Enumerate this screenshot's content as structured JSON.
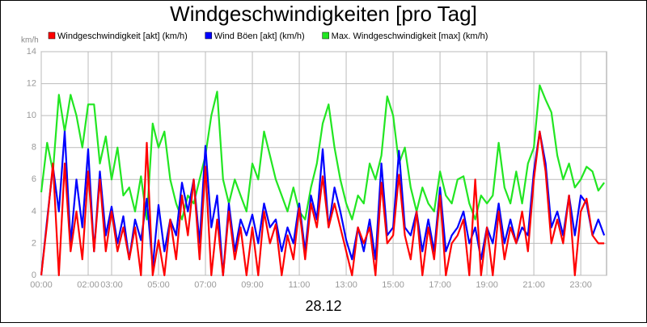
{
  "chart_data": {
    "type": "line",
    "title": "Windgeschwindigkeiten [pro Tag]",
    "y_unit": "km/h",
    "x_label": "28.12",
    "grid": true,
    "xlim": [
      0,
      24.1
    ],
    "ylim": [
      0,
      14
    ],
    "yticks": [
      0,
      2,
      4,
      6,
      8,
      10,
      12,
      14
    ],
    "xticks": [
      {
        "value": 0,
        "label": "00:00"
      },
      {
        "value": 2,
        "label": "02:00"
      },
      {
        "value": 3,
        "label": "03:00"
      },
      {
        "value": 5,
        "label": "05:00"
      },
      {
        "value": 7,
        "label": "07:00"
      },
      {
        "value": 9,
        "label": "09:00"
      },
      {
        "value": 11,
        "label": "11:00"
      },
      {
        "value": 13,
        "label": "13:00"
      },
      {
        "value": 15,
        "label": "15:00"
      },
      {
        "value": 17,
        "label": "17:00"
      },
      {
        "value": 19,
        "label": "19:00"
      },
      {
        "value": 21,
        "label": "21:00"
      },
      {
        "value": 23,
        "label": "23:00"
      }
    ],
    "x": [
      0,
      0.25,
      0.5,
      0.75,
      1,
      1.25,
      1.5,
      1.75,
      2,
      2.25,
      2.5,
      2.75,
      3,
      3.25,
      3.5,
      3.75,
      4,
      4.25,
      4.5,
      4.75,
      5,
      5.25,
      5.5,
      5.75,
      6,
      6.25,
      6.5,
      6.75,
      7,
      7.25,
      7.5,
      7.75,
      8,
      8.25,
      8.5,
      8.75,
      9,
      9.25,
      9.5,
      9.75,
      10,
      10.25,
      10.5,
      10.75,
      11,
      11.25,
      11.5,
      11.75,
      12,
      12.25,
      12.5,
      12.75,
      13,
      13.25,
      13.5,
      13.75,
      14,
      14.25,
      14.5,
      14.75,
      15,
      15.25,
      15.5,
      15.75,
      16,
      16.25,
      16.5,
      16.75,
      17,
      17.25,
      17.5,
      17.75,
      18,
      18.25,
      18.5,
      18.75,
      19,
      19.25,
      19.5,
      19.75,
      20,
      20.25,
      20.5,
      20.75,
      21,
      21.25,
      21.5,
      21.75,
      22,
      22.25,
      22.5,
      22.75,
      23,
      23.25,
      23.5,
      23.75,
      24
    ],
    "series": [
      {
        "name": "Windgeschwindigkeit [akt] (km/h)",
        "color": "#ff0000",
        "values": [
          0,
          3.3,
          7,
          0,
          7,
          1.5,
          4,
          1,
          6.5,
          1.5,
          6,
          1.5,
          4,
          1.5,
          3,
          1,
          3,
          0,
          8.3,
          0,
          2.2,
          0,
          3.5,
          1,
          5,
          2.5,
          6,
          1,
          6.8,
          0,
          3.5,
          0,
          4,
          1,
          3,
          0,
          3,
          0,
          4,
          2,
          3.2,
          0,
          2.5,
          1,
          4.2,
          1,
          4.5,
          3,
          6.2,
          3,
          4.5,
          3,
          1.5,
          0,
          3,
          2,
          3,
          0,
          5.8,
          2,
          2.5,
          6.3,
          2.5,
          1,
          4,
          0,
          3,
          1,
          5,
          0,
          2,
          2.5,
          3.5,
          0,
          6,
          0,
          3,
          0,
          4,
          1,
          3,
          2,
          4,
          1.5,
          6,
          9,
          6.5,
          2,
          3.5,
          2,
          5,
          0,
          4,
          4.8,
          2.5,
          2,
          2
        ]
      },
      {
        "name": "Wind Böen [akt] (km/h)",
        "color": "#0000ff",
        "values": [
          0,
          3.5,
          6.8,
          4,
          9,
          2,
          6,
          3,
          7.9,
          1.5,
          6.5,
          2.5,
          4.3,
          2,
          3.7,
          1,
          3.5,
          2.2,
          4.8,
          0.5,
          4.4,
          1.5,
          3.5,
          2.5,
          5.8,
          4,
          6,
          2,
          8.1,
          3,
          5,
          0,
          4.5,
          1.5,
          3.5,
          2.5,
          3.8,
          2,
          4.5,
          3,
          3.5,
          1.5,
          3,
          2,
          4.5,
          1.5,
          5,
          3.5,
          7.9,
          3,
          5.5,
          4,
          2.2,
          1,
          3,
          1.5,
          3.5,
          1,
          7,
          2.5,
          3,
          7.8,
          3,
          2.5,
          4,
          1.5,
          3.5,
          1.5,
          5.5,
          1.5,
          2.5,
          3,
          4,
          2,
          3,
          1,
          3,
          2,
          4.5,
          2,
          3.5,
          2,
          3,
          2.5,
          6.5,
          9,
          7,
          3,
          4,
          2.5,
          5,
          2.5,
          5,
          4.5,
          2.5,
          3.5,
          2.5
        ]
      },
      {
        "name": "Max. Windgeschwindigkeit [max] (km/h)",
        "color": "#22e622",
        "values": [
          5.2,
          8.3,
          6.5,
          11.3,
          9,
          11.3,
          10,
          8,
          10.7,
          10.7,
          7,
          8.7,
          6,
          8,
          5,
          5.5,
          4,
          6.2,
          3.5,
          9.5,
          8,
          9,
          6,
          4.5,
          3.5,
          5,
          4.5,
          6,
          7.5,
          10,
          11.5,
          6,
          4.5,
          6,
          5,
          4,
          7,
          6,
          9,
          7.5,
          6,
          5,
          4,
          5.5,
          4,
          3.5,
          5.5,
          7,
          9.5,
          10.7,
          8,
          6,
          4.5,
          3.5,
          5,
          4.5,
          7,
          6,
          7.5,
          11.2,
          10,
          7,
          8,
          5.5,
          4,
          5.5,
          4.5,
          4,
          6.5,
          5,
          4.5,
          6,
          6.2,
          4.5,
          3.5,
          5,
          4.5,
          5,
          8.3,
          5.5,
          4.5,
          6.5,
          4.5,
          7,
          8,
          11.9,
          11,
          10.2,
          7.5,
          6,
          7,
          5.5,
          6,
          6.8,
          6.5,
          5.3,
          5.8
        ]
      }
    ]
  }
}
